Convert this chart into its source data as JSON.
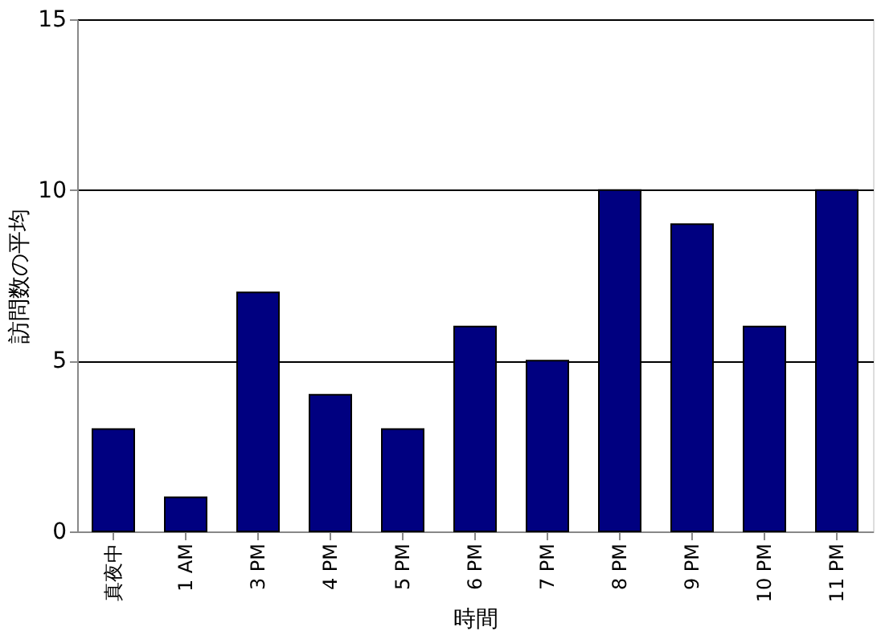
{
  "chart_data": {
    "type": "bar",
    "xlabel": "時間",
    "ylabel": "訪問数の平均",
    "categories": [
      "真夜中",
      "1 AM",
      "3 PM",
      "4 PM",
      "5 PM",
      "6 PM",
      "7 PM",
      "8 PM",
      "9 PM",
      "10 PM",
      "11 PM"
    ],
    "values": [
      3,
      1,
      7,
      4,
      3,
      6,
      5,
      10,
      9,
      6,
      10
    ],
    "color": "#000080",
    "ylim": [
      0,
      15
    ],
    "yticks": [
      0,
      5,
      10,
      15
    ],
    "grid": "y"
  }
}
